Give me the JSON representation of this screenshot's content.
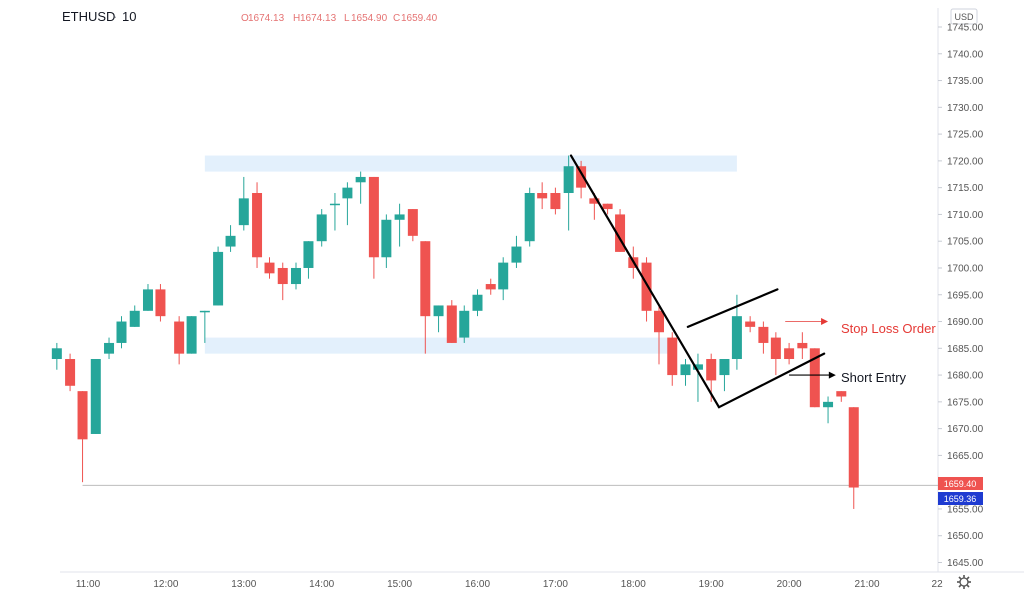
{
  "header": {
    "symbol": "ETHUSD",
    "sep": "·",
    "interval": "10",
    "ohlc": [
      {
        "label": "O",
        "value": "1674.13"
      },
      {
        "label": "H",
        "value": "1674.13"
      },
      {
        "label": "L",
        "value": "1654.90"
      },
      {
        "label": "C",
        "value": "1659.40"
      }
    ]
  },
  "currency": "USD",
  "price_tags": {
    "last": "1659.40",
    "bid": "1659.36"
  },
  "annotations": {
    "stop_loss": "Stop Loss Order",
    "short_entry": "Short Entry"
  },
  "colors": {
    "up": "#26a69a",
    "down": "#ef5350",
    "zone": "#e3f0fc",
    "text": "#131722",
    "axis": "#555555",
    "annotation_red": "#e53935",
    "price_line": "#bdbdbd",
    "bid_tag": "#1e3bd1",
    "last_tag": "#ef5350"
  },
  "icons": {
    "settings": "gear-icon"
  },
  "chart_data": {
    "type": "candlestick",
    "symbol": "ETHUSD",
    "interval": "10",
    "ylim": [
      1643,
      1748
    ],
    "y_ticks": [
      1645,
      1650,
      1655,
      1660,
      1665,
      1670,
      1675,
      1680,
      1685,
      1690,
      1695,
      1700,
      1705,
      1710,
      1715,
      1720,
      1725,
      1730,
      1735,
      1740,
      1745
    ],
    "x_ticks": [
      {
        "label": "11:00",
        "t": 11.0
      },
      {
        "label": "12:00",
        "t": 12.0
      },
      {
        "label": "13:00",
        "t": 13.0
      },
      {
        "label": "14:00",
        "t": 14.0
      },
      {
        "label": "15:00",
        "t": 15.0
      },
      {
        "label": "16:00",
        "t": 16.0
      },
      {
        "label": "17:00",
        "t": 17.0
      },
      {
        "label": "18:00",
        "t": 18.0
      },
      {
        "label": "19:00",
        "t": 19.0
      },
      {
        "label": "20:00",
        "t": 20.0
      },
      {
        "label": "21:00",
        "t": 21.0
      },
      {
        "label": "22",
        "t": 21.9
      }
    ],
    "xlim": [
      10.6,
      21.95
    ],
    "candles": [
      {
        "t": 10.6,
        "o": 1683,
        "h": 1686,
        "l": 1681,
        "c": 1685
      },
      {
        "t": 10.77,
        "o": 1683,
        "h": 1684,
        "l": 1677,
        "c": 1678
      },
      {
        "t": 10.93,
        "o": 1677,
        "h": 1677,
        "l": 1660,
        "c": 1668
      },
      {
        "t": 11.1,
        "o": 1669,
        "h": 1683,
        "l": 1669,
        "c": 1683
      },
      {
        "t": 11.27,
        "o": 1684,
        "h": 1687,
        "l": 1683,
        "c": 1686
      },
      {
        "t": 11.43,
        "o": 1686,
        "h": 1691,
        "l": 1685,
        "c": 1690
      },
      {
        "t": 11.6,
        "o": 1689,
        "h": 1693,
        "l": 1689,
        "c": 1692
      },
      {
        "t": 11.77,
        "o": 1692,
        "h": 1697,
        "l": 1692,
        "c": 1696
      },
      {
        "t": 11.93,
        "o": 1696,
        "h": 1697,
        "l": 1690,
        "c": 1691
      },
      {
        "t": 12.17,
        "o": 1690,
        "h": 1691,
        "l": 1682,
        "c": 1684
      },
      {
        "t": 12.33,
        "o": 1684,
        "h": 1691,
        "l": 1684,
        "c": 1691
      },
      {
        "t": 12.5,
        "o": 1692,
        "h": 1692,
        "l": 1686,
        "c": 1692
      },
      {
        "t": 12.67,
        "o": 1693,
        "h": 1704,
        "l": 1693,
        "c": 1703
      },
      {
        "t": 12.83,
        "o": 1704,
        "h": 1708,
        "l": 1703,
        "c": 1706
      },
      {
        "t": 13.0,
        "o": 1708,
        "h": 1717,
        "l": 1707,
        "c": 1713
      },
      {
        "t": 13.17,
        "o": 1714,
        "h": 1716,
        "l": 1700,
        "c": 1702
      },
      {
        "t": 13.33,
        "o": 1701,
        "h": 1702,
        "l": 1698,
        "c": 1699
      },
      {
        "t": 13.5,
        "o": 1700,
        "h": 1701,
        "l": 1694,
        "c": 1697
      },
      {
        "t": 13.67,
        "o": 1697,
        "h": 1701,
        "l": 1696,
        "c": 1700
      },
      {
        "t": 13.83,
        "o": 1700,
        "h": 1705,
        "l": 1698,
        "c": 1705
      },
      {
        "t": 14.0,
        "o": 1705,
        "h": 1711,
        "l": 1704,
        "c": 1710
      },
      {
        "t": 14.17,
        "o": 1712,
        "h": 1714,
        "l": 1707,
        "c": 1712
      },
      {
        "t": 14.33,
        "o": 1713,
        "h": 1716,
        "l": 1708,
        "c": 1715
      },
      {
        "t": 14.5,
        "o": 1716,
        "h": 1718,
        "l": 1712,
        "c": 1717
      },
      {
        "t": 14.67,
        "o": 1717,
        "h": 1717,
        "l": 1698,
        "c": 1702
      },
      {
        "t": 14.83,
        "o": 1702,
        "h": 1710,
        "l": 1700,
        "c": 1709
      },
      {
        "t": 15.0,
        "o": 1709,
        "h": 1712,
        "l": 1704,
        "c": 1710
      },
      {
        "t": 15.17,
        "o": 1711,
        "h": 1711,
        "l": 1705,
        "c": 1706
      },
      {
        "t": 15.33,
        "o": 1705,
        "h": 1705,
        "l": 1684,
        "c": 1691
      },
      {
        "t": 15.5,
        "o": 1691,
        "h": 1693,
        "l": 1688,
        "c": 1693
      },
      {
        "t": 15.67,
        "o": 1693,
        "h": 1694,
        "l": 1686,
        "c": 1686
      },
      {
        "t": 15.83,
        "o": 1687,
        "h": 1693,
        "l": 1686,
        "c": 1692
      },
      {
        "t": 16.0,
        "o": 1692,
        "h": 1696,
        "l": 1691,
        "c": 1695
      },
      {
        "t": 16.17,
        "o": 1697,
        "h": 1698,
        "l": 1695,
        "c": 1696
      },
      {
        "t": 16.33,
        "o": 1696,
        "h": 1702,
        "l": 1694,
        "c": 1701
      },
      {
        "t": 16.5,
        "o": 1701,
        "h": 1706,
        "l": 1700,
        "c": 1704
      },
      {
        "t": 16.67,
        "o": 1705,
        "h": 1715,
        "l": 1704,
        "c": 1714
      },
      {
        "t": 16.83,
        "o": 1714,
        "h": 1716,
        "l": 1711,
        "c": 1713
      },
      {
        "t": 17.0,
        "o": 1714,
        "h": 1715,
        "l": 1710,
        "c": 1711
      },
      {
        "t": 17.17,
        "o": 1714,
        "h": 1721,
        "l": 1707,
        "c": 1719
      },
      {
        "t": 17.33,
        "o": 1719,
        "h": 1720,
        "l": 1713,
        "c": 1715
      },
      {
        "t": 17.5,
        "o": 1713,
        "h": 1714,
        "l": 1709,
        "c": 1712
      },
      {
        "t": 17.67,
        "o": 1712,
        "h": 1712,
        "l": 1710,
        "c": 1711
      },
      {
        "t": 17.83,
        "o": 1710,
        "h": 1711,
        "l": 1703,
        "c": 1703
      },
      {
        "t": 18.0,
        "o": 1702,
        "h": 1704,
        "l": 1698,
        "c": 1700
      },
      {
        "t": 18.17,
        "o": 1701,
        "h": 1702,
        "l": 1690,
        "c": 1692
      },
      {
        "t": 18.33,
        "o": 1692,
        "h": 1693,
        "l": 1682,
        "c": 1688
      },
      {
        "t": 18.5,
        "o": 1687,
        "h": 1688,
        "l": 1678,
        "c": 1680
      },
      {
        "t": 18.67,
        "o": 1680,
        "h": 1683,
        "l": 1678,
        "c": 1682
      },
      {
        "t": 18.83,
        "o": 1681,
        "h": 1684,
        "l": 1675,
        "c": 1682
      },
      {
        "t": 19.0,
        "o": 1683,
        "h": 1684,
        "l": 1675,
        "c": 1679
      },
      {
        "t": 19.17,
        "o": 1680,
        "h": 1683,
        "l": 1677,
        "c": 1683
      },
      {
        "t": 19.33,
        "o": 1683,
        "h": 1695,
        "l": 1681,
        "c": 1691
      },
      {
        "t": 19.5,
        "o": 1690,
        "h": 1691,
        "l": 1688,
        "c": 1689
      },
      {
        "t": 19.67,
        "o": 1689,
        "h": 1690,
        "l": 1684,
        "c": 1686
      },
      {
        "t": 19.83,
        "o": 1687,
        "h": 1688,
        "l": 1680,
        "c": 1683
      },
      {
        "t": 20.0,
        "o": 1685,
        "h": 1686,
        "l": 1682,
        "c": 1683
      },
      {
        "t": 20.17,
        "o": 1686,
        "h": 1688,
        "l": 1683,
        "c": 1685
      },
      {
        "t": 20.33,
        "o": 1685,
        "h": 1685,
        "l": 1674,
        "c": 1674
      },
      {
        "t": 20.5,
        "o": 1674,
        "h": 1676,
        "l": 1671,
        "c": 1675
      },
      {
        "t": 20.67,
        "o": 1677,
        "h": 1677,
        "l": 1675,
        "c": 1676
      },
      {
        "t": 20.83,
        "o": 1674,
        "h": 1674,
        "l": 1655,
        "c": 1659
      }
    ],
    "zones": [
      {
        "t0": 12.5,
        "t1": 19.33,
        "y0": 1718,
        "y1": 1721
      },
      {
        "t0": 12.5,
        "t1": 18.5,
        "y0": 1684,
        "y1": 1687
      }
    ],
    "lines": [
      {
        "t0": 17.2,
        "y0": 1721,
        "t1": 19.1,
        "y1": 1674
      },
      {
        "t0": 19.1,
        "y0": 1674,
        "t1": 20.45,
        "y1": 1684
      },
      {
        "t0": 18.7,
        "y0": 1689,
        "t1": 19.85,
        "y1": 1696
      }
    ],
    "arrows": [
      {
        "t0": 19.95,
        "t1": 20.5,
        "y": 1690,
        "kind": "stop_loss"
      },
      {
        "t0": 20.0,
        "t1": 20.6,
        "y": 1680,
        "kind": "short_entry"
      }
    ],
    "last_price": 1659.4,
    "bid_price": 1659.36,
    "last_line_from": 10.93
  }
}
